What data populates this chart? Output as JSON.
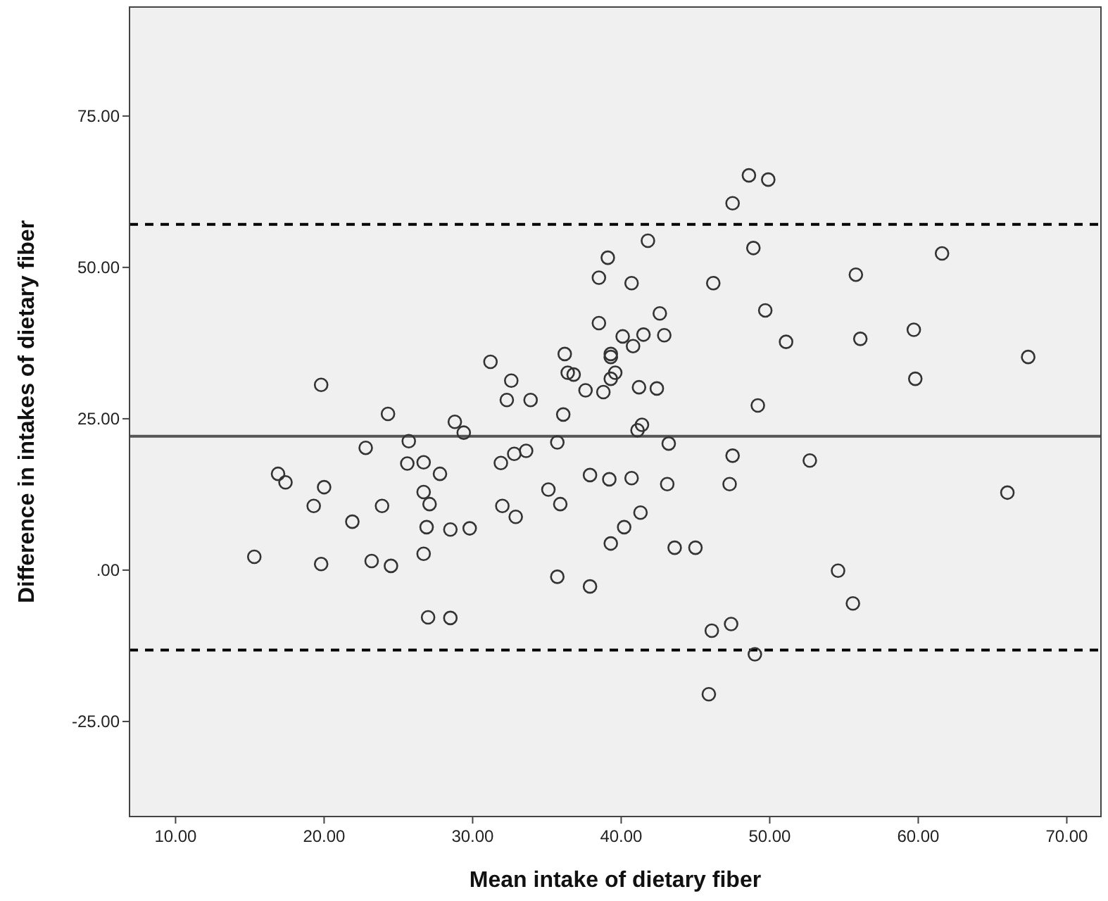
{
  "chart_data": {
    "type": "scatter",
    "xlabel": "Mean intake of dietary fiber",
    "ylabel": "Difference in intakes of dietary fiber",
    "xlim": [
      6.9,
      72.3
    ],
    "ylim": [
      -40.7,
      93.0
    ],
    "xticks": [
      {
        "value": 10,
        "label": "10.00"
      },
      {
        "value": 20,
        "label": "20.00"
      },
      {
        "value": 30,
        "label": "30.00"
      },
      {
        "value": 40,
        "label": "40.00"
      },
      {
        "value": 50,
        "label": "50.00"
      },
      {
        "value": 60,
        "label": "60.00"
      },
      {
        "value": 70,
        "label": "70.00"
      }
    ],
    "yticks": [
      {
        "value": -25,
        "label": "-25.00"
      },
      {
        "value": 0,
        "label": ".00"
      },
      {
        "value": 25,
        "label": "25.00"
      },
      {
        "value": 50,
        "label": "50.00"
      },
      {
        "value": 75,
        "label": "75.00"
      }
    ],
    "marker": "circle",
    "ref_lines": [
      {
        "axis": "y",
        "value": 22.1,
        "line_style": "solid",
        "color": "#555555"
      },
      {
        "axis": "y",
        "value": 57.1,
        "line_style": "dashed",
        "color": "#000000"
      },
      {
        "axis": "y",
        "value": -13.2,
        "line_style": "dashed",
        "color": "#000000"
      }
    ],
    "series": [
      {
        "color": "#333333",
        "x": [
          19.8,
          24.3,
          22.8,
          25.7,
          16.9,
          17.4,
          20.0,
          19.3,
          25.6,
          21.9,
          23.9,
          15.3,
          19.8,
          23.2,
          24.5,
          41.8,
          39.1,
          38.5,
          40.7,
          42.6,
          38.5,
          40.1,
          41.5,
          42.9,
          40.8,
          36.2,
          39.3,
          39.3,
          31.2,
          32.6,
          36.4,
          36.8,
          39.6,
          39.3,
          37.6,
          38.8,
          41.2,
          42.4,
          32.3,
          33.9,
          36.1,
          28.8,
          29.4,
          41.1,
          41.4,
          35.7,
          43.2,
          26.7,
          27.8,
          31.9,
          32.8,
          33.6,
          37.9,
          39.2,
          40.7,
          43.1,
          26.7,
          27.1,
          26.9,
          28.5,
          29.8,
          26.7,
          32.0,
          32.9,
          35.1,
          35.9,
          41.3,
          40.2,
          39.3,
          43.6,
          45.0,
          35.7,
          37.9,
          27.0,
          28.5,
          48.6,
          49.9,
          47.5,
          48.9,
          46.2,
          61.6,
          55.8,
          49.7,
          51.1,
          56.1,
          59.7,
          59.8,
          67.4,
          49.2,
          47.5,
          47.3,
          52.7,
          66.0,
          54.6,
          55.6,
          46.1,
          47.4,
          49.0,
          45.9
        ],
        "values": [
          30.6,
          25.8,
          20.2,
          21.3,
          15.9,
          14.5,
          13.7,
          10.6,
          17.6,
          8.0,
          10.6,
          2.2,
          1.0,
          1.5,
          0.7,
          54.4,
          51.6,
          48.3,
          47.4,
          42.4,
          40.8,
          38.6,
          38.9,
          38.8,
          37.0,
          35.7,
          35.7,
          35.2,
          34.4,
          31.3,
          32.6,
          32.3,
          32.6,
          31.6,
          29.7,
          29.4,
          30.2,
          30.0,
          28.1,
          28.1,
          25.7,
          24.5,
          22.7,
          23.1,
          24.0,
          21.1,
          20.9,
          17.8,
          15.9,
          17.7,
          19.2,
          19.7,
          15.7,
          15.0,
          15.2,
          14.2,
          12.9,
          10.9,
          7.1,
          6.7,
          6.9,
          2.7,
          10.6,
          8.8,
          13.3,
          10.9,
          9.5,
          7.1,
          4.4,
          3.7,
          3.7,
          -1.1,
          -2.7,
          -7.8,
          -7.9,
          65.2,
          64.5,
          60.6,
          53.2,
          47.4,
          52.3,
          48.8,
          42.9,
          37.7,
          38.2,
          39.7,
          31.6,
          35.2,
          27.2,
          18.9,
          14.2,
          18.1,
          12.8,
          -0.1,
          -5.5,
          -10.0,
          -8.9,
          -13.9,
          -20.5
        ]
      }
    ]
  }
}
